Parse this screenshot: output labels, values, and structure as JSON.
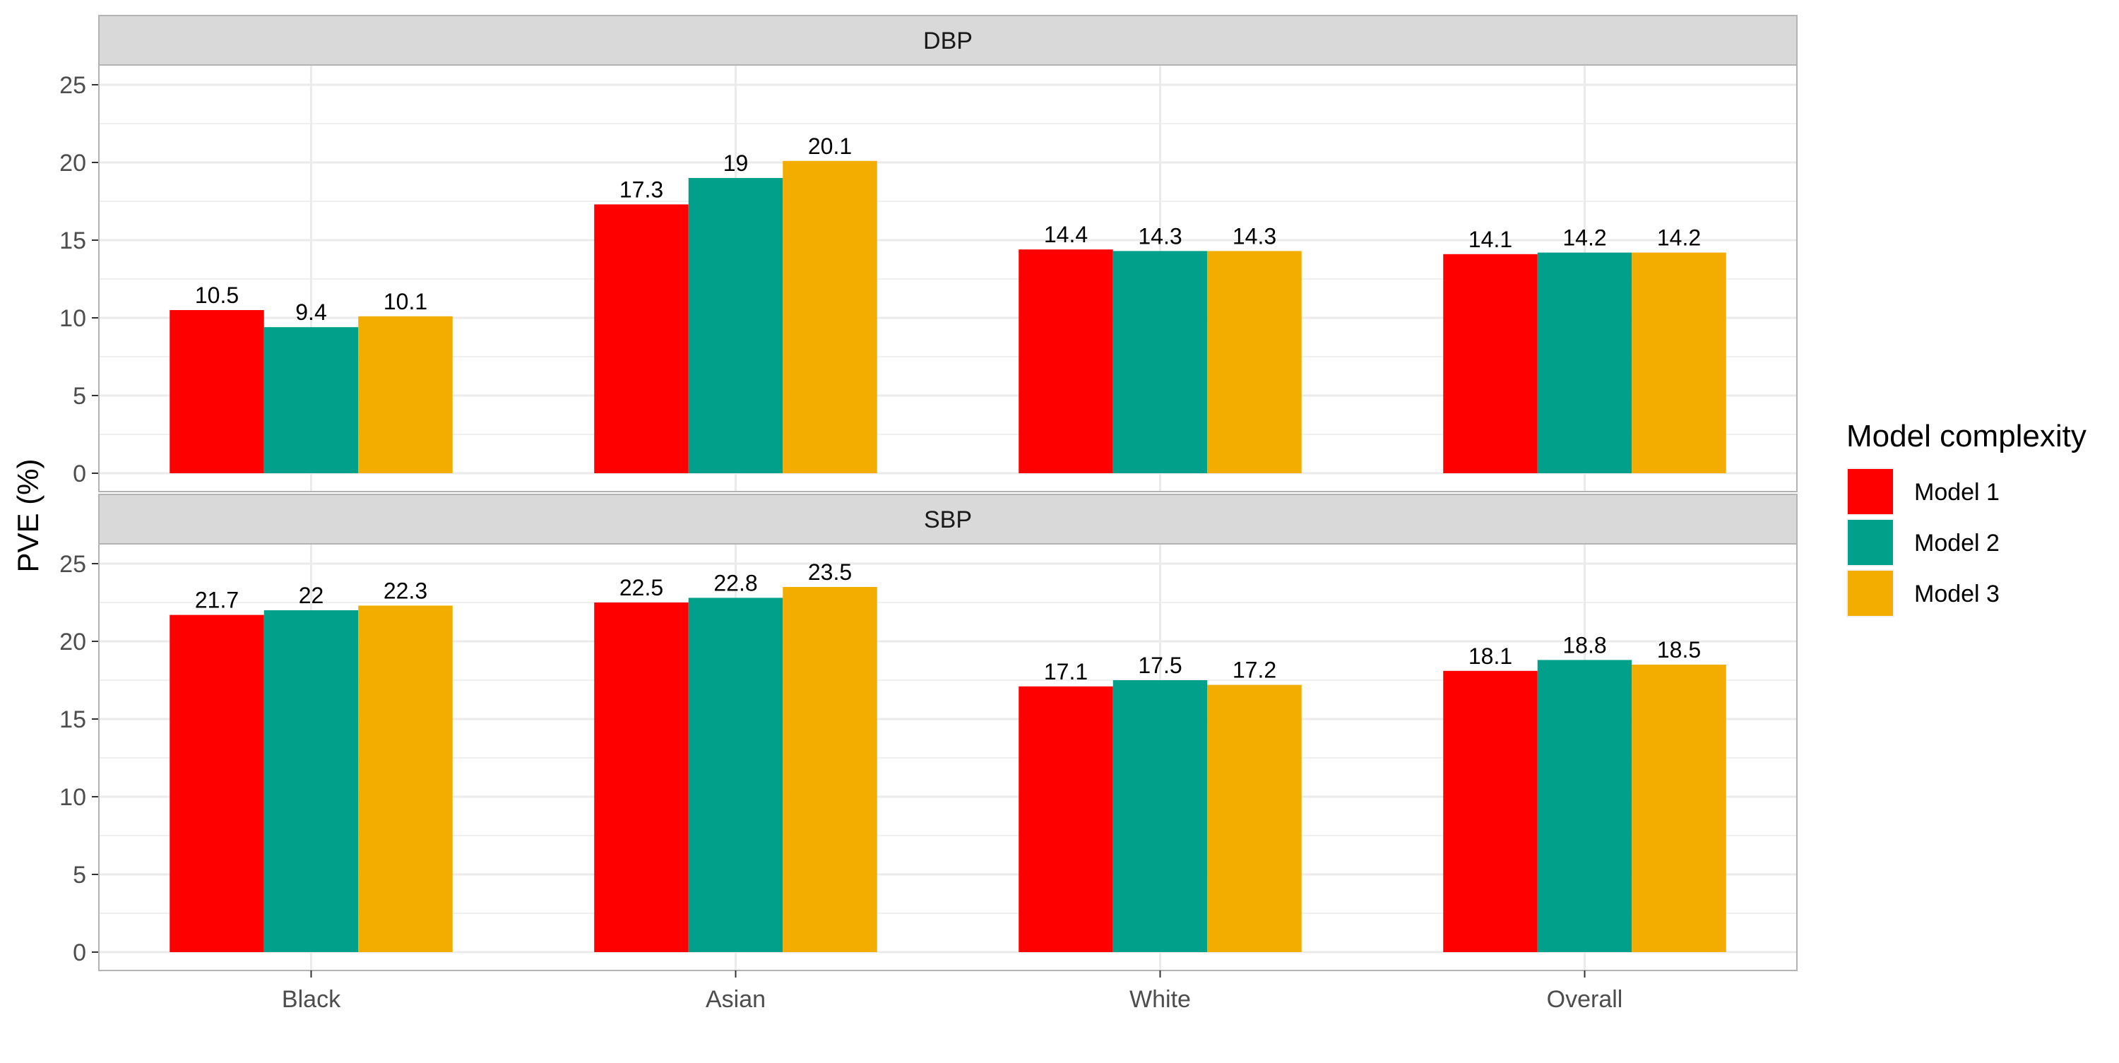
{
  "chart_data": {
    "type": "bar",
    "categories": [
      "Black",
      "Asian",
      "White",
      "Overall"
    ],
    "ylabel": "PVE (%)",
    "ylim": [
      0,
      25
    ],
    "yticks": [
      0,
      5,
      10,
      15,
      20,
      25
    ],
    "grid": true,
    "legend": {
      "title": "Model complexity",
      "placement": "right"
    },
    "series": [
      {
        "name": "Model 1",
        "color": "#FF0000"
      },
      {
        "name": "Model 2",
        "color": "#00A08A"
      },
      {
        "name": "Model 3",
        "color": "#F2AD00"
      }
    ],
    "panels": [
      {
        "label": "DBP",
        "values": [
          [
            10.5,
            17.3,
            14.4,
            14.1
          ],
          [
            9.4,
            19,
            14.3,
            14.2
          ],
          [
            10.1,
            20.1,
            14.3,
            14.2
          ]
        ]
      },
      {
        "label": "SBP",
        "values": [
          [
            21.7,
            22.5,
            17.1,
            18.1
          ],
          [
            22,
            22.8,
            17.5,
            18.8
          ],
          [
            22.3,
            23.5,
            17.2,
            18.5
          ]
        ]
      }
    ]
  }
}
